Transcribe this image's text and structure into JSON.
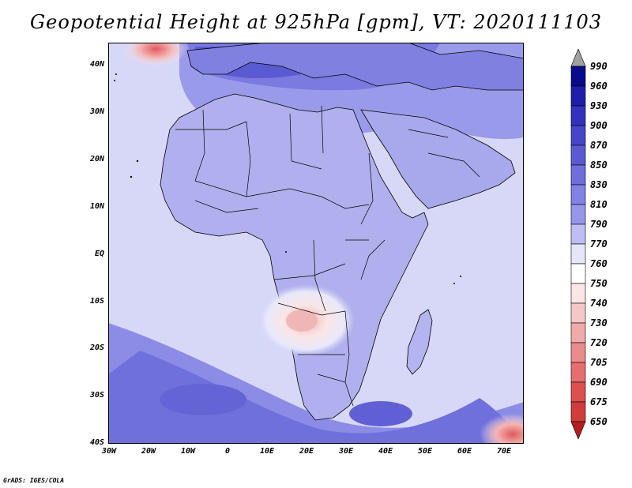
{
  "title": "Geopotential Height at 925hPa [gpm], VT: 2020111103",
  "footer": "GrADS: IGES/COLA",
  "map": {
    "region": "Africa",
    "lat_ticks": [
      "40N",
      "30N",
      "20N",
      "10N",
      "EQ",
      "10S",
      "20S",
      "30S",
      "40S"
    ],
    "lon_ticks": [
      "30W",
      "20W",
      "10W",
      "0",
      "10E",
      "20E",
      "30E",
      "40E",
      "50E",
      "60E",
      "70E"
    ],
    "colors": {
      "ocean": "#dcdcfa",
      "land": "#b4b4f0",
      "high": "#7878dc",
      "low": "#f5c8c8",
      "border": "#000000"
    }
  },
  "colorbar": {
    "levels": [
      "990",
      "960",
      "930",
      "900",
      "870",
      "850",
      "830",
      "810",
      "790",
      "770",
      "760",
      "750",
      "740",
      "730",
      "720",
      "705",
      "690",
      "675",
      "650"
    ],
    "colors": [
      "#0a0a8c",
      "#1e1eaa",
      "#3232be",
      "#4646c8",
      "#5a5ad2",
      "#6e6edc",
      "#8282e6",
      "#9696eb",
      "#bebef5",
      "#e6e6fa",
      "#ffffff",
      "#fae6e6",
      "#f5c8c8",
      "#f0aaaa",
      "#eb8c8c",
      "#e66e6e",
      "#dc5050",
      "#d23c3c",
      "#c82828",
      "#b41e1e"
    ],
    "top_arrow_color": "#a0a0a0",
    "bottom_arrow_color": "#b41e1e"
  }
}
